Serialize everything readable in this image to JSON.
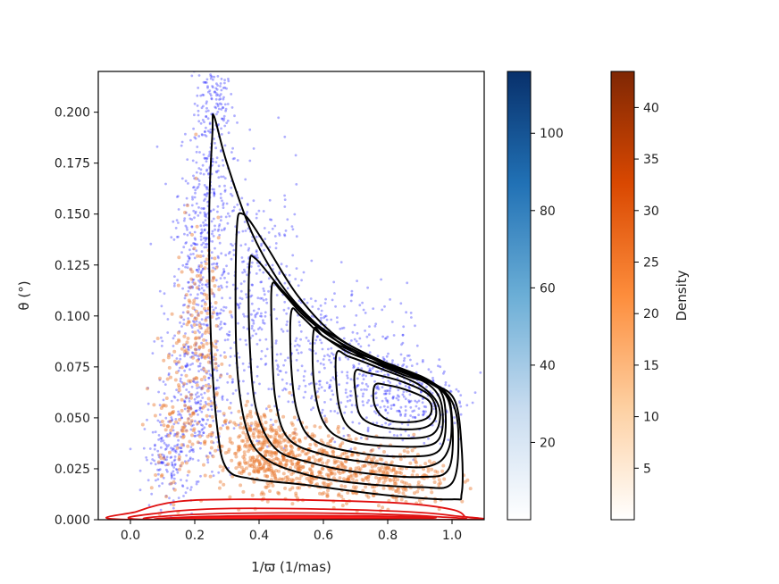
{
  "chart_data": {
    "type": "scatter",
    "title": "",
    "xlabel": "1/ϖ (1/mas)",
    "ylabel": "θ (°)",
    "xlim": [
      -0.1,
      1.1
    ],
    "ylim": [
      0.0,
      0.22
    ],
    "x_ticks": [
      0.0,
      0.2,
      0.4,
      0.6,
      0.8,
      1.0
    ],
    "x_tick_labels": [
      "0.0",
      "0.2",
      "0.4",
      "0.6",
      "0.8",
      "1.0"
    ],
    "y_ticks": [
      0.0,
      0.025,
      0.05,
      0.075,
      0.1,
      0.125,
      0.15,
      0.175,
      0.2
    ],
    "y_tick_labels": [
      "0.000",
      "0.025",
      "0.050",
      "0.075",
      "0.100",
      "0.125",
      "0.150",
      "0.175",
      "0.200"
    ],
    "grid": false,
    "series": [
      {
        "color": "#1a1aff",
        "cloud": [
          {
            "x": 0.26,
            "y": 0.205,
            "sx": 0.03,
            "sy": 0.012,
            "n": 140
          },
          {
            "x": 0.24,
            "y": 0.16,
            "sx": 0.045,
            "sy": 0.02,
            "n": 220
          },
          {
            "x": 0.22,
            "y": 0.11,
            "sx": 0.055,
            "sy": 0.025,
            "n": 260
          },
          {
            "x": 0.2,
            "y": 0.06,
            "sx": 0.05,
            "sy": 0.02,
            "n": 260
          },
          {
            "x": 0.12,
            "y": 0.03,
            "sx": 0.04,
            "sy": 0.012,
            "n": 160
          },
          {
            "x": 0.4,
            "y": 0.11,
            "sx": 0.07,
            "sy": 0.03,
            "n": 280
          },
          {
            "x": 0.62,
            "y": 0.08,
            "sx": 0.12,
            "sy": 0.018,
            "n": 320
          },
          {
            "x": 0.85,
            "y": 0.06,
            "sx": 0.1,
            "sy": 0.012,
            "n": 300
          }
        ]
      },
      {
        "color": "#e8772e",
        "cloud": [
          {
            "x": 0.4,
            "y": 0.035,
            "sx": 0.06,
            "sy": 0.01,
            "n": 320
          },
          {
            "x": 0.55,
            "y": 0.028,
            "sx": 0.09,
            "sy": 0.009,
            "n": 320
          },
          {
            "x": 0.8,
            "y": 0.02,
            "sx": 0.1,
            "sy": 0.008,
            "n": 280
          },
          {
            "x": 0.22,
            "y": 0.09,
            "sx": 0.04,
            "sy": 0.03,
            "n": 160
          },
          {
            "x": 0.15,
            "y": 0.05,
            "sx": 0.04,
            "sy": 0.02,
            "n": 120
          }
        ]
      }
    ],
    "density_contours_black": [
      [
        [
          0.255,
          0.19
        ],
        [
          0.26,
          0.198
        ],
        [
          0.3,
          0.175
        ],
        [
          0.38,
          0.14
        ],
        [
          0.48,
          0.113
        ],
        [
          0.6,
          0.093
        ],
        [
          0.72,
          0.08
        ],
        [
          0.85,
          0.071
        ],
        [
          0.95,
          0.066
        ],
        [
          1.01,
          0.058
        ],
        [
          1.03,
          0.035
        ],
        [
          1.03,
          0.013
        ],
        [
          1.0,
          0.01
        ],
        [
          0.8,
          0.012
        ],
        [
          0.55,
          0.017
        ],
        [
          0.38,
          0.02
        ],
        [
          0.3,
          0.025
        ],
        [
          0.27,
          0.045
        ],
        [
          0.25,
          0.09
        ],
        [
          0.245,
          0.15
        ],
        [
          0.255,
          0.19
        ]
      ],
      [
        [
          0.33,
          0.14
        ],
        [
          0.35,
          0.15
        ],
        [
          0.42,
          0.135
        ],
        [
          0.52,
          0.11
        ],
        [
          0.64,
          0.09
        ],
        [
          0.78,
          0.078
        ],
        [
          0.93,
          0.068
        ],
        [
          1.0,
          0.058
        ],
        [
          1.02,
          0.04
        ],
        [
          1.0,
          0.018
        ],
        [
          0.9,
          0.016
        ],
        [
          0.7,
          0.018
        ],
        [
          0.55,
          0.022
        ],
        [
          0.42,
          0.03
        ],
        [
          0.36,
          0.045
        ],
        [
          0.33,
          0.08
        ],
        [
          0.33,
          0.14
        ]
      ],
      [
        [
          0.37,
          0.125
        ],
        [
          0.39,
          0.128
        ],
        [
          0.47,
          0.113
        ],
        [
          0.57,
          0.097
        ],
        [
          0.7,
          0.084
        ],
        [
          0.85,
          0.073
        ],
        [
          0.97,
          0.064
        ],
        [
          1.0,
          0.05
        ],
        [
          0.99,
          0.025
        ],
        [
          0.9,
          0.021
        ],
        [
          0.72,
          0.023
        ],
        [
          0.56,
          0.028
        ],
        [
          0.45,
          0.035
        ],
        [
          0.39,
          0.055
        ],
        [
          0.37,
          0.09
        ],
        [
          0.37,
          0.125
        ]
      ],
      [
        [
          0.44,
          0.115
        ],
        [
          0.47,
          0.112
        ],
        [
          0.54,
          0.1
        ],
        [
          0.64,
          0.088
        ],
        [
          0.78,
          0.077
        ],
        [
          0.92,
          0.068
        ],
        [
          0.99,
          0.058
        ],
        [
          0.99,
          0.035
        ],
        [
          0.92,
          0.026
        ],
        [
          0.75,
          0.028
        ],
        [
          0.6,
          0.032
        ],
        [
          0.49,
          0.04
        ],
        [
          0.45,
          0.06
        ],
        [
          0.44,
          0.09
        ],
        [
          0.44,
          0.115
        ]
      ],
      [
        [
          0.5,
          0.102
        ],
        [
          0.53,
          0.1
        ],
        [
          0.6,
          0.09
        ],
        [
          0.7,
          0.082
        ],
        [
          0.83,
          0.075
        ],
        [
          0.95,
          0.066
        ],
        [
          0.98,
          0.052
        ],
        [
          0.96,
          0.034
        ],
        [
          0.85,
          0.031
        ],
        [
          0.7,
          0.033
        ],
        [
          0.57,
          0.039
        ],
        [
          0.52,
          0.052
        ],
        [
          0.5,
          0.075
        ],
        [
          0.5,
          0.102
        ]
      ],
      [
        [
          0.57,
          0.093
        ],
        [
          0.6,
          0.09
        ],
        [
          0.68,
          0.082
        ],
        [
          0.8,
          0.075
        ],
        [
          0.93,
          0.066
        ],
        [
          0.97,
          0.054
        ],
        [
          0.95,
          0.038
        ],
        [
          0.82,
          0.036
        ],
        [
          0.67,
          0.039
        ],
        [
          0.6,
          0.048
        ],
        [
          0.57,
          0.068
        ],
        [
          0.57,
          0.093
        ]
      ],
      [
        [
          0.64,
          0.081
        ],
        [
          0.68,
          0.08
        ],
        [
          0.78,
          0.074
        ],
        [
          0.9,
          0.066
        ],
        [
          0.96,
          0.055
        ],
        [
          0.94,
          0.042
        ],
        [
          0.82,
          0.04
        ],
        [
          0.7,
          0.043
        ],
        [
          0.65,
          0.055
        ],
        [
          0.64,
          0.081
        ]
      ],
      [
        [
          0.7,
          0.073
        ],
        [
          0.74,
          0.072
        ],
        [
          0.84,
          0.068
        ],
        [
          0.93,
          0.061
        ],
        [
          0.95,
          0.051
        ],
        [
          0.91,
          0.045
        ],
        [
          0.8,
          0.045
        ],
        [
          0.72,
          0.05
        ],
        [
          0.7,
          0.062
        ],
        [
          0.7,
          0.073
        ]
      ],
      [
        [
          0.76,
          0.066
        ],
        [
          0.8,
          0.066
        ],
        [
          0.87,
          0.063
        ],
        [
          0.93,
          0.058
        ],
        [
          0.93,
          0.051
        ],
        [
          0.88,
          0.048
        ],
        [
          0.8,
          0.049
        ],
        [
          0.76,
          0.056
        ],
        [
          0.76,
          0.066
        ]
      ]
    ],
    "density_contours_red": [
      [
        [
          0.0,
          0.0
        ],
        [
          0.02,
          0.004
        ],
        [
          0.15,
          0.009
        ],
        [
          0.35,
          0.01
        ],
        [
          0.6,
          0.0095
        ],
        [
          0.85,
          0.008
        ],
        [
          1.0,
          0.005
        ],
        [
          1.04,
          0.0015
        ],
        [
          1.03,
          0.0
        ],
        [
          0.0,
          0.0
        ]
      ],
      [
        [
          0.06,
          0.0
        ],
        [
          0.1,
          0.0035
        ],
        [
          0.3,
          0.0055
        ],
        [
          0.6,
          0.0052
        ],
        [
          0.85,
          0.004
        ],
        [
          1.0,
          0.002
        ],
        [
          1.02,
          0.0
        ],
        [
          0.06,
          0.0
        ]
      ],
      [
        [
          0.1,
          0.0
        ],
        [
          0.15,
          0.0022
        ],
        [
          0.4,
          0.0033
        ],
        [
          0.7,
          0.003
        ],
        [
          0.95,
          0.0015
        ],
        [
          0.98,
          0.0
        ],
        [
          0.1,
          0.0
        ]
      ],
      [
        [
          0.12,
          0.0
        ],
        [
          0.2,
          0.0014
        ],
        [
          0.45,
          0.002
        ],
        [
          0.75,
          0.0018
        ],
        [
          0.92,
          0.0008
        ],
        [
          0.12,
          0.0
        ]
      ]
    ],
    "colorbars": [
      {
        "colors": [
          "#ffffff",
          "#c7dbef",
          "#6baed6",
          "#2171b5",
          "#08306b"
        ],
        "range": [
          0,
          116
        ],
        "ticks": [
          20,
          40,
          60,
          80,
          100
        ],
        "tick_labels": [
          "20",
          "40",
          "60",
          "80",
          "100"
        ],
        "label": ""
      },
      {
        "colors": [
          "#ffffff",
          "#fdd0a2",
          "#fd8d3c",
          "#d94801",
          "#7f2704"
        ],
        "range": [
          0,
          43.5
        ],
        "ticks": [
          5,
          10,
          15,
          20,
          25,
          30,
          35,
          40
        ],
        "tick_labels": [
          "5",
          "10",
          "15",
          "20",
          "25",
          "30",
          "35",
          "40"
        ],
        "label": "Density"
      }
    ]
  }
}
